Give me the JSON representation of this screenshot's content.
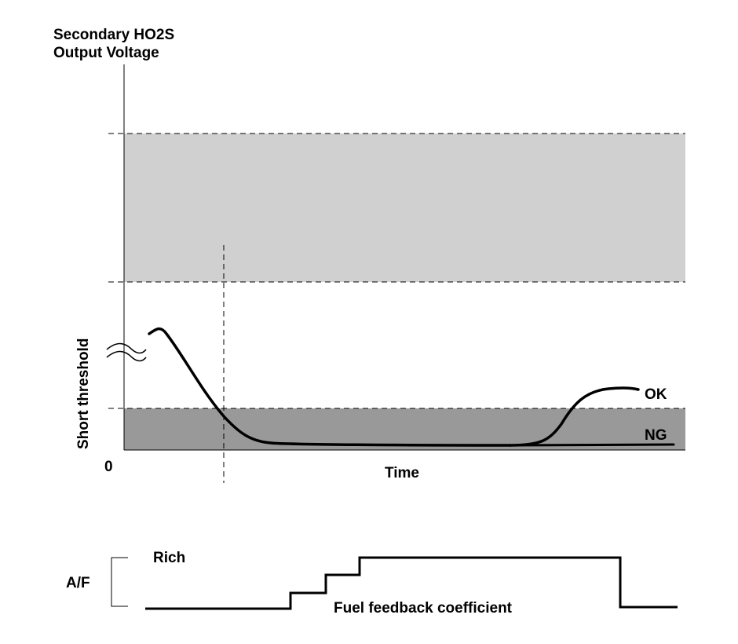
{
  "colors": {
    "upper_band": "#d0d0d0",
    "lower_band": "#999999",
    "line": "#000000",
    "background": "#ffffff"
  },
  "labels": {
    "y_title_line1": "Secondary HO2S",
    "y_title_line2": "Output Voltage",
    "short_threshold": "Short threshold",
    "origin": "0",
    "x_axis": "Time",
    "ok": "OK",
    "ng": "NG",
    "af": "A/F",
    "rich": "Rich",
    "fuel_feedback": "Fuel feedback coefficient"
  },
  "icons": {
    "axis_break": "double-wave-break-icon"
  }
}
